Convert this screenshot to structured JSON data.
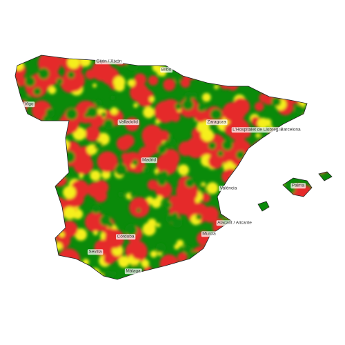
{
  "cities": [
    "Gijón / Xixón",
    "Bilbo",
    "Vigo",
    "Valladolid",
    "Zaragoza",
    "L'Hospitalet de Llobregat",
    "Barcelona",
    "Madrid",
    "València",
    "Palma",
    "Alacant / Alicante",
    "Córdoba",
    "Murcia",
    "Sevilla",
    "Málaga"
  ]
}
